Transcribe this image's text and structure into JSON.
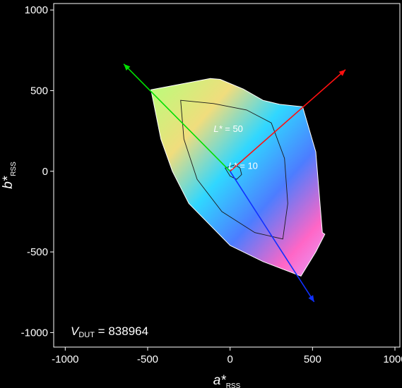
{
  "chart_data": {
    "type": "area",
    "title": "",
    "xlabel": {
      "main": "a*",
      "sub": "RSS"
    },
    "ylabel": {
      "main": "b*",
      "sub": "RSS"
    },
    "xlim": [
      -1070,
      1030
    ],
    "ylim": [
      -1090,
      1040
    ],
    "xticks": [
      -1000,
      -500,
      0,
      500,
      1000
    ],
    "yticks": [
      1000,
      500,
      0,
      -500,
      -1000
    ],
    "xtick_labels": [
      "-1000",
      "-500",
      "0",
      "500",
      "1000"
    ],
    "ytick_labels": [
      "1000",
      "500",
      "0",
      "-500",
      "-1000"
    ],
    "grid": false,
    "background": "#000000",
    "gamut_outline": [
      [
        -480,
        505
      ],
      [
        -300,
        540
      ],
      [
        -120,
        575
      ],
      [
        -60,
        570
      ],
      [
        80,
        510
      ],
      [
        200,
        440
      ],
      [
        300,
        415
      ],
      [
        440,
        400
      ],
      [
        520,
        120
      ],
      [
        560,
        -380
      ],
      [
        575,
        -390
      ],
      [
        520,
        -500
      ],
      [
        430,
        -650
      ],
      [
        200,
        -560
      ],
      [
        0,
        -460
      ],
      [
        -250,
        -200
      ],
      [
        -350,
        0
      ],
      [
        -420,
        200
      ]
    ],
    "lightness_contours": [
      {
        "level": 10,
        "points": [
          [
            -30,
            20
          ],
          [
            30,
            40
          ],
          [
            60,
            20
          ],
          [
            70,
            -20
          ],
          [
            40,
            -50
          ],
          [
            0,
            -30
          ]
        ]
      },
      {
        "level": 50,
        "points": [
          [
            -300,
            440
          ],
          [
            -100,
            420
          ],
          [
            100,
            380
          ],
          [
            250,
            300
          ],
          [
            330,
            80
          ],
          [
            350,
            -200
          ],
          [
            320,
            -420
          ],
          [
            150,
            -380
          ],
          [
            -50,
            -250
          ],
          [
            -200,
            -50
          ],
          [
            -280,
            200
          ]
        ]
      }
    ],
    "primary_vectors": [
      {
        "color": "#00e000",
        "from": [
          0,
          0
        ],
        "to": [
          -645,
          665
        ]
      },
      {
        "color": "#ff1010",
        "from": [
          0,
          0
        ],
        "to": [
          700,
          630
        ]
      },
      {
        "color": "#1030ff",
        "from": [
          0,
          0
        ],
        "to": [
          510,
          -810
        ]
      }
    ],
    "annotations": [
      {
        "label_main": "L*",
        "label_rest": " = 50",
        "x": -100,
        "y": 245
      },
      {
        "label_main": "L*",
        "label_rest": " = 10",
        "x": -10,
        "y": 15
      }
    ],
    "footnote": {
      "main": "V",
      "sub": "DUT",
      "rest": " = 838964"
    }
  }
}
